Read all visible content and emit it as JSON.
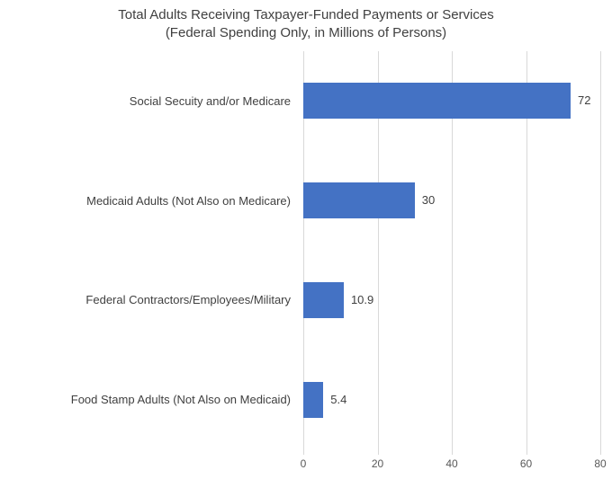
{
  "chart_data": {
    "type": "bar",
    "orientation": "horizontal",
    "title": "Total Adults Receiving Taxpayer-Funded Payments or Services",
    "subtitle": "(Federal Spending Only, in Millions of Persons)",
    "categories": [
      "Social Secuity and/or Medicare",
      "Medicaid Adults (Not Also on Medicare)",
      "Federal Contractors/Employees/Military",
      "Food Stamp Adults (Not Also on Medicaid)"
    ],
    "values": [
      72,
      30,
      10.9,
      5.4
    ],
    "value_labels": [
      "72",
      "30",
      "10.9",
      "5.4"
    ],
    "xlabel": "",
    "ylabel": "",
    "xlim": [
      0,
      80
    ],
    "x_ticks": [
      0,
      20,
      40,
      60,
      80
    ],
    "grid": true,
    "legend": "none",
    "bar_color": "#4472C4",
    "gridline_color": "#D9D9D9",
    "title_color": "#404040",
    "label_color": "#404040",
    "tick_label_color": "#595959"
  }
}
